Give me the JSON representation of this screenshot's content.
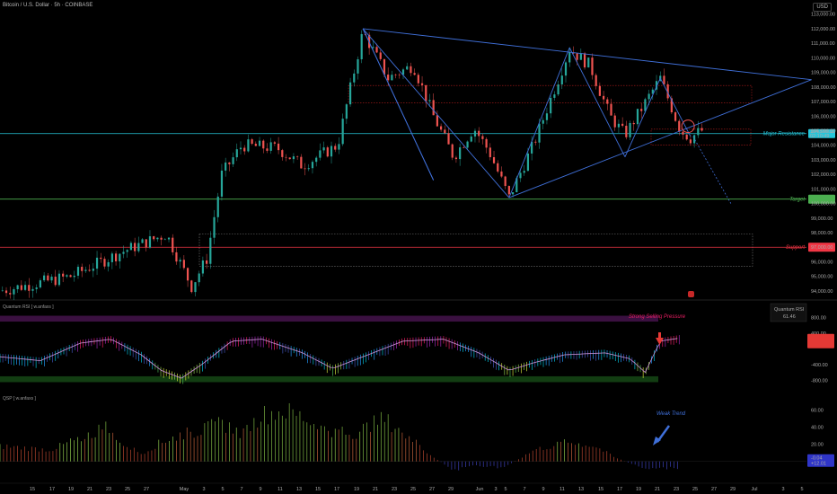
{
  "header": {
    "title": "Bitcoin / U.S. Dollar · 5h · COINBASE",
    "currency": "USD"
  },
  "colors": {
    "up": "#26a69a",
    "down": "#ef5350",
    "resistance": "#26c6da",
    "target": "#4caf50",
    "support": "#f23645",
    "pattern": "#3f6fd8"
  },
  "chart_data": [
    {
      "type": "candlestick",
      "title": "Bitcoin / U.S. Dollar · 5h · COINBASE",
      "price_ticks": [
        "113,000.00",
        "112,000.00",
        "111,000.00",
        "110,000.00",
        "109,000.00",
        "108,000.00",
        "107,000.00",
        "106,000.00",
        "105,000.00",
        "104,000.00",
        "103,000.00",
        "102,000.00",
        "101,000.00",
        "100,000.00",
        "99,000.00",
        "98,000.00",
        "97,000.00",
        "96,000.00",
        "95,000.00",
        "94,000.00"
      ],
      "tick_values": [
        113000,
        112000,
        111000,
        110000,
        109000,
        108000,
        107000,
        106000,
        105000,
        104000,
        103000,
        102000,
        101000,
        100000,
        99000,
        98000,
        97000,
        96000,
        95000,
        94000
      ],
      "ylim": [
        93500,
        113600
      ],
      "close_path": [
        [
          0,
          94000
        ],
        [
          14,
          95000
        ],
        [
          25,
          96800
        ],
        [
          33,
          97900
        ],
        [
          38,
          94300
        ],
        [
          41,
          96200
        ],
        [
          44,
          102000
        ],
        [
          48,
          104000
        ],
        [
          55,
          103800
        ],
        [
          60,
          102600
        ],
        [
          67,
          104000
        ],
        [
          72,
          111800
        ],
        [
          77,
          108600
        ],
        [
          82,
          109500
        ],
        [
          86,
          106000
        ],
        [
          90,
          103200
        ],
        [
          94,
          105200
        ],
        [
          97,
          103600
        ],
        [
          101,
          100400
        ],
        [
          106,
          104200
        ],
        [
          113,
          110600
        ],
        [
          117,
          109500
        ],
        [
          121,
          106000
        ],
        [
          124,
          104700
        ],
        [
          131,
          108600
        ],
        [
          135,
          105000
        ],
        [
          137,
          104500
        ],
        [
          139,
          105000
        ]
      ],
      "levels": [
        {
          "name": "Major Resistance",
          "value": 104800,
          "badge_lines": [
            "104,500.11",
            "02:10:49"
          ]
        },
        {
          "name": "Target",
          "value": 100300,
          "badge_lines": [
            ""
          ]
        },
        {
          "name": "Support",
          "value": 97000,
          "badge_lines": [
            ""
          ]
        }
      ],
      "annotations": [
        "Major Resistance",
        "Target",
        "Support"
      ]
    },
    {
      "type": "line",
      "title": "Quantum RSI [ w.anfaxs ]",
      "ticks": [
        "800.00",
        "400.00",
        "-400.00",
        "-800.00"
      ],
      "tick_values": [
        800,
        400,
        -400,
        -800
      ],
      "ylim": [
        -1000,
        1000
      ],
      "series": [
        {
          "values_path": [
            [
              0,
              -200
            ],
            [
              8,
              -300
            ],
            [
              16,
              150
            ],
            [
              22,
              250
            ],
            [
              28,
              -150
            ],
            [
              32,
              -550
            ],
            [
              36,
              -750
            ],
            [
              40,
              -400
            ],
            [
              46,
              200
            ],
            [
              52,
              250
            ],
            [
              60,
              -100
            ],
            [
              66,
              -500
            ],
            [
              72,
              -200
            ],
            [
              80,
              200
            ],
            [
              88,
              250
            ],
            [
              95,
              -100
            ],
            [
              101,
              -550
            ],
            [
              106,
              -350
            ],
            [
              112,
              -150
            ],
            [
              120,
              -100
            ],
            [
              125,
              -250
            ],
            [
              128,
              -600
            ],
            [
              131,
              200
            ],
            [
              135,
              280
            ]
          ]
        }
      ],
      "badge": {
        "title": "Quantum RSI",
        "value": "61.46"
      },
      "annotation": "Strong Selling Pressure"
    },
    {
      "type": "bar",
      "title": "QSP [ w.anfaxs ]",
      "ticks": [
        "60.00",
        "40.00",
        "20.00"
      ],
      "tick_values": [
        60,
        40,
        20
      ],
      "ylim": [
        -15,
        72
      ],
      "values_path": [
        [
          0,
          20
        ],
        [
          10,
          15
        ],
        [
          16,
          30
        ],
        [
          21,
          45
        ],
        [
          24,
          25
        ],
        [
          28,
          10
        ],
        [
          32,
          25
        ],
        [
          36,
          35
        ],
        [
          40,
          40
        ],
        [
          44,
          50
        ],
        [
          48,
          35
        ],
        [
          52,
          60
        ],
        [
          56,
          66
        ],
        [
          60,
          58
        ],
        [
          64,
          42
        ],
        [
          70,
          35
        ],
        [
          76,
          55
        ],
        [
          80,
          40
        ],
        [
          84,
          15
        ],
        [
          90,
          -12
        ],
        [
          94,
          -5
        ],
        [
          100,
          -8
        ],
        [
          106,
          15
        ],
        [
          113,
          25
        ],
        [
          118,
          20
        ],
        [
          122,
          5
        ],
        [
          128,
          -10
        ],
        [
          135,
          -8
        ]
      ],
      "badge_lines": [
        "-0.04",
        "+12.01"
      ],
      "annotation": "Weak Trend"
    }
  ],
  "time_axis": {
    "labels": [
      "15",
      "17",
      "19",
      "21",
      "23",
      "25",
      "27",
      "May",
      "3",
      "5",
      "7",
      "9",
      "11",
      "13",
      "15",
      "17",
      "19",
      "21",
      "23",
      "25",
      "27",
      "29",
      "Jun",
      "3",
      "5",
      "7",
      "9",
      "11",
      "13",
      "15",
      "17",
      "19",
      "21",
      "23",
      "25",
      "27",
      "29",
      "Jul",
      "3",
      "5"
    ],
    "positions": [
      36,
      58,
      79,
      100,
      121,
      142,
      163,
      205,
      227,
      248,
      269,
      290,
      312,
      333,
      354,
      375,
      397,
      418,
      439,
      460,
      481,
      502,
      534,
      552,
      563,
      584,
      605,
      626,
      647,
      669,
      690,
      711,
      732,
      753,
      774,
      795,
      816,
      840,
      872,
      893
    ],
    "domain": [
      0,
      160
    ]
  }
}
